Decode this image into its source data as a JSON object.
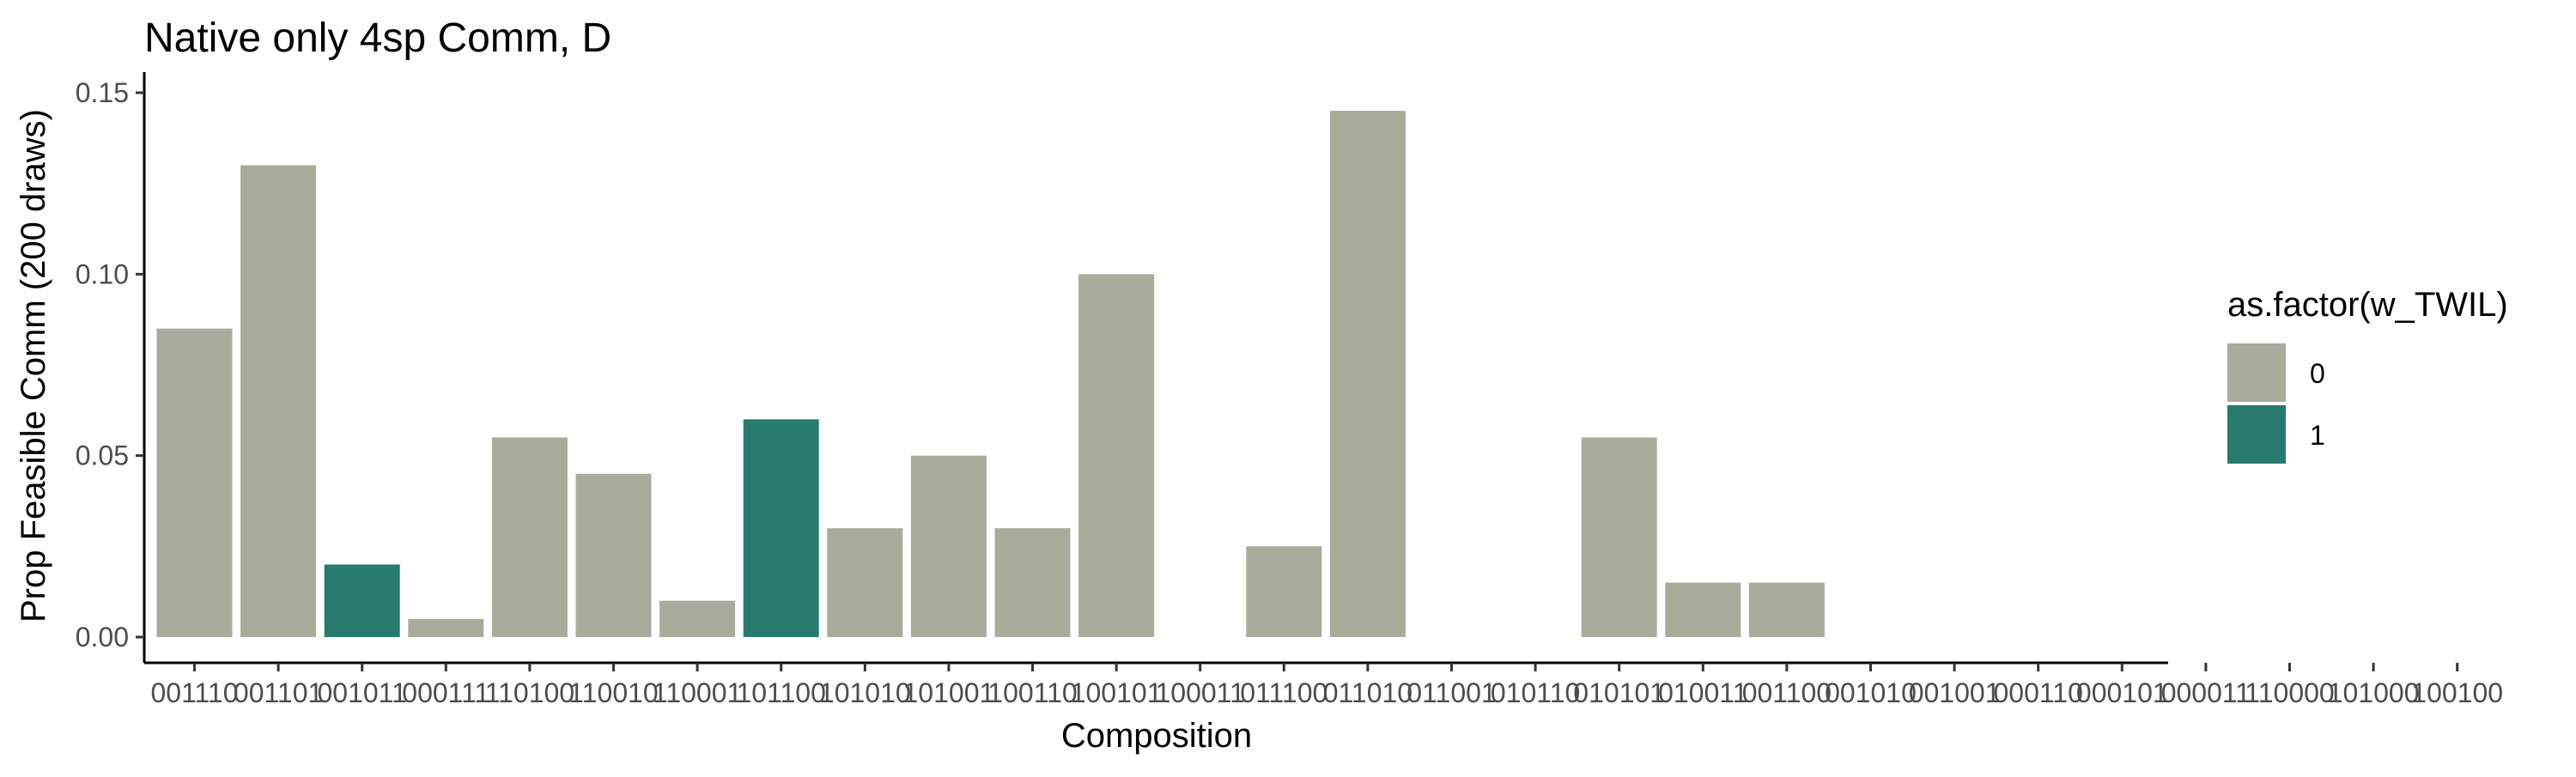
{
  "chart_data": {
    "type": "bar",
    "title": "Native only 4sp Comm, D",
    "xlabel": "Composition",
    "ylabel": "Prop Feasible Comm (200 draws)",
    "ylim": [
      0,
      0.15
    ],
    "yticks": [
      "0.00",
      "0.05",
      "0.10",
      "0.15"
    ],
    "ytick_values": [
      0,
      0.05,
      0.1,
      0.15
    ],
    "grid": false,
    "legend_position": "right",
    "categories": [
      "001110",
      "001101",
      "001011",
      "000111",
      "110100",
      "110010",
      "110001",
      "101100",
      "101010",
      "101001",
      "100110",
      "100101",
      "100011",
      "011100",
      "011010",
      "011001",
      "010110",
      "010101",
      "010011",
      "001100",
      "001010",
      "001001",
      "000110",
      "000101",
      "000011",
      "110000",
      "101000",
      "100100"
    ],
    "values": [
      0.085,
      0.13,
      0.02,
      0.005,
      0.055,
      0.045,
      0.01,
      0.06,
      0.03,
      0.05,
      0.03,
      0.1,
      0,
      0.025,
      0.145,
      0,
      0,
      0.055,
      0.015,
      0.015,
      0,
      0,
      0,
      0,
      0,
      0,
      0,
      0
    ],
    "groups": [
      0,
      0,
      1,
      0,
      0,
      0,
      0,
      1,
      0,
      0,
      0,
      0,
      0,
      0,
      0,
      0,
      0,
      0,
      0,
      0,
      0,
      0,
      0,
      0,
      0,
      0,
      0,
      0
    ],
    "legend": {
      "title": "as.factor(w_TWIL)",
      "entries": [
        {
          "label": "0",
          "color": "#a8ac9b"
        },
        {
          "label": "1",
          "color": "#267b6e"
        }
      ]
    },
    "colors": {
      "0": "#a8ac9b",
      "1": "#267b6e"
    }
  }
}
